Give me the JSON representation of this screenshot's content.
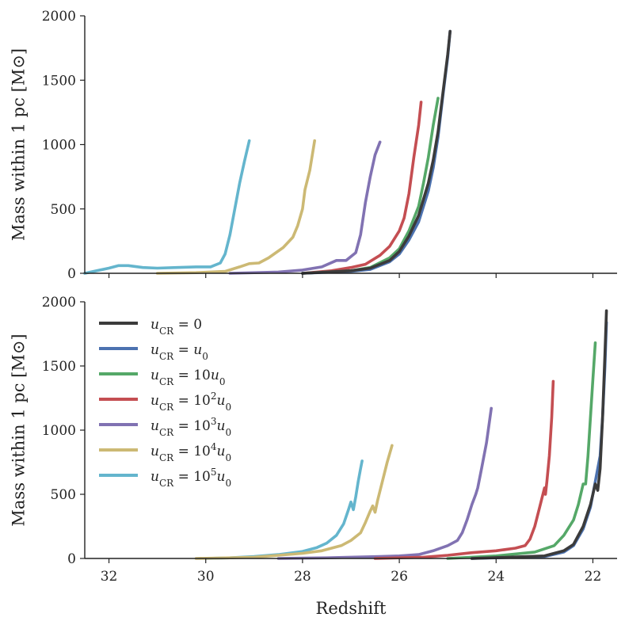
{
  "chart_data": [
    {
      "type": "line",
      "ylabel": "Mass within 1 pc [M⊙]",
      "xlabel": "",
      "xlim": [
        32.5,
        21.5
      ],
      "ylim": [
        0,
        2000
      ],
      "xticks": [
        32,
        30,
        28,
        26,
        24,
        22
      ],
      "xtick_labels": [],
      "yticks": [
        0,
        500,
        1000,
        1500,
        2000
      ],
      "ytick_labels": [
        "0",
        "500",
        "1000",
        "1500",
        "2000"
      ],
      "series": [
        {
          "name": "uCR = 0",
          "color": "#3b3b3b",
          "points": [
            [
              28.0,
              0
            ],
            [
              27.0,
              20
            ],
            [
              26.6,
              40
            ],
            [
              26.2,
              100
            ],
            [
              26.0,
              170
            ],
            [
              25.8,
              290
            ],
            [
              25.6,
              450
            ],
            [
              25.4,
              700
            ],
            [
              25.3,
              880
            ],
            [
              25.2,
              1100
            ],
            [
              25.1,
              1400
            ],
            [
              25.0,
              1700
            ],
            [
              24.95,
              1880
            ]
          ]
        },
        {
          "name": "uCR = u0",
          "color": "#4c72b0",
          "points": [
            [
              28.0,
              0
            ],
            [
              27.0,
              15
            ],
            [
              26.6,
              30
            ],
            [
              26.2,
              90
            ],
            [
              26.0,
              150
            ],
            [
              25.8,
              260
            ],
            [
              25.6,
              400
            ],
            [
              25.4,
              640
            ],
            [
              25.3,
              820
            ],
            [
              25.2,
              1060
            ],
            [
              25.1,
              1380
            ],
            [
              25.0,
              1680
            ],
            [
              24.95,
              1880
            ]
          ]
        },
        {
          "name": "uCR = 10u0",
          "color": "#55a868",
          "points": [
            [
              28.0,
              0
            ],
            [
              27.0,
              20
            ],
            [
              26.6,
              45
            ],
            [
              26.2,
              120
            ],
            [
              26.0,
              190
            ],
            [
              25.8,
              330
            ],
            [
              25.6,
              520
            ],
            [
              25.5,
              700
            ],
            [
              25.4,
              900
            ],
            [
              25.3,
              1150
            ],
            [
              25.2,
              1360
            ]
          ]
        },
        {
          "name": "uCR = 10^2u0",
          "color": "#c44e52",
          "points": [
            [
              28.0,
              0
            ],
            [
              27.4,
              20
            ],
            [
              27.0,
              45
            ],
            [
              26.7,
              70
            ],
            [
              26.4,
              140
            ],
            [
              26.2,
              210
            ],
            [
              26.0,
              330
            ],
            [
              25.9,
              430
            ],
            [
              25.8,
              620
            ],
            [
              25.7,
              900
            ],
            [
              25.6,
              1150
            ],
            [
              25.55,
              1330
            ]
          ]
        },
        {
          "name": "uCR = 10^3u0",
          "color": "#8172b2",
          "points": [
            [
              29.5,
              0
            ],
            [
              28.5,
              10
            ],
            [
              28.0,
              25
            ],
            [
              27.6,
              50
            ],
            [
              27.3,
              100
            ],
            [
              27.1,
              100
            ],
            [
              26.9,
              160
            ],
            [
              26.8,
              300
            ],
            [
              26.7,
              550
            ],
            [
              26.6,
              750
            ],
            [
              26.5,
              920
            ],
            [
              26.4,
              1020
            ]
          ]
        },
        {
          "name": "uCR = 10^4u0",
          "color": "#ccb974",
          "points": [
            [
              31.0,
              0
            ],
            [
              30.2,
              5
            ],
            [
              29.6,
              15
            ],
            [
              29.3,
              50
            ],
            [
              29.1,
              75
            ],
            [
              28.9,
              80
            ],
            [
              28.7,
              120
            ],
            [
              28.4,
              200
            ],
            [
              28.2,
              280
            ],
            [
              28.1,
              370
            ],
            [
              28.0,
              500
            ],
            [
              27.95,
              650
            ],
            [
              27.85,
              800
            ],
            [
              27.75,
              1030
            ]
          ]
        },
        {
          "name": "uCR = 10^5u0",
          "color": "#64b5cd",
          "points": [
            [
              32.5,
              0
            ],
            [
              32.0,
              40
            ],
            [
              31.8,
              60
            ],
            [
              31.6,
              60
            ],
            [
              31.3,
              45
            ],
            [
              31.0,
              40
            ],
            [
              30.6,
              45
            ],
            [
              30.2,
              50
            ],
            [
              29.9,
              50
            ],
            [
              29.7,
              80
            ],
            [
              29.6,
              150
            ],
            [
              29.5,
              300
            ],
            [
              29.4,
              500
            ],
            [
              29.3,
              700
            ],
            [
              29.2,
              870
            ],
            [
              29.1,
              1030
            ]
          ]
        }
      ]
    },
    {
      "type": "line",
      "ylabel": "Mass within 1 pc [M⊙]",
      "xlabel": "Redshift",
      "xlim": [
        32.5,
        21.5
      ],
      "ylim": [
        0,
        2000
      ],
      "xticks": [
        32,
        30,
        28,
        26,
        24,
        22
      ],
      "xtick_labels": [
        "32",
        "30",
        "28",
        "26",
        "24",
        "22"
      ],
      "yticks": [
        0,
        500,
        1000,
        1500,
        2000
      ],
      "ytick_labels": [
        "0",
        "500",
        "1000",
        "1500",
        "2000"
      ],
      "legend": {
        "placement": "upper-left",
        "entries": [
          {
            "label": "uCR = 0",
            "color": "#3b3b3b"
          },
          {
            "label": "uCR = u0",
            "color": "#4c72b0"
          },
          {
            "label": "uCR = 10u0",
            "color": "#55a868"
          },
          {
            "label": "uCR = 10^2u0",
            "color": "#c44e52"
          },
          {
            "label": "uCR = 10^3u0",
            "color": "#8172b2"
          },
          {
            "label": "uCR = 10^4u0",
            "color": "#ccb974"
          },
          {
            "label": "uCR = 10^5u0",
            "color": "#64b5cd"
          }
        ]
      },
      "series": [
        {
          "name": "uCR = 0",
          "color": "#3b3b3b",
          "points": [
            [
              24.5,
              0
            ],
            [
              23.0,
              20
            ],
            [
              22.6,
              60
            ],
            [
              22.4,
              110
            ],
            [
              22.2,
              250
            ],
            [
              22.05,
              420
            ],
            [
              21.95,
              580
            ],
            [
              21.9,
              530
            ],
            [
              21.85,
              700
            ],
            [
              21.8,
              1100
            ],
            [
              21.75,
              1600
            ],
            [
              21.72,
              1930
            ]
          ]
        },
        {
          "name": "uCR = u0",
          "color": "#4c72b0",
          "points": [
            [
              24.5,
              0
            ],
            [
              23.0,
              15
            ],
            [
              22.6,
              50
            ],
            [
              22.4,
              100
            ],
            [
              22.2,
              230
            ],
            [
              22.05,
              400
            ],
            [
              21.95,
              600
            ],
            [
              21.85,
              800
            ],
            [
              21.8,
              1100
            ],
            [
              21.75,
              1500
            ],
            [
              21.72,
              1840
            ]
          ]
        },
        {
          "name": "uCR = 10u0",
          "color": "#55a868",
          "points": [
            [
              25.0,
              0
            ],
            [
              24.0,
              20
            ],
            [
              23.2,
              50
            ],
            [
              22.8,
              100
            ],
            [
              22.6,
              180
            ],
            [
              22.4,
              300
            ],
            [
              22.3,
              420
            ],
            [
              22.2,
              580
            ],
            [
              22.15,
              580
            ],
            [
              22.1,
              800
            ],
            [
              22.05,
              1100
            ],
            [
              22.0,
              1400
            ],
            [
              21.95,
              1680
            ]
          ]
        },
        {
          "name": "uCR = 10^2u0",
          "color": "#c44e52",
          "points": [
            [
              26.5,
              0
            ],
            [
              25.5,
              10
            ],
            [
              25.0,
              25
            ],
            [
              24.5,
              45
            ],
            [
              24.0,
              60
            ],
            [
              23.6,
              80
            ],
            [
              23.4,
              100
            ],
            [
              23.3,
              150
            ],
            [
              23.2,
              250
            ],
            [
              23.1,
              400
            ],
            [
              23.0,
              550
            ],
            [
              22.98,
              500
            ],
            [
              22.95,
              600
            ],
            [
              22.9,
              800
            ],
            [
              22.85,
              1100
            ],
            [
              22.82,
              1380
            ]
          ]
        },
        {
          "name": "uCR = 10^3u0",
          "color": "#8172b2",
          "points": [
            [
              28.5,
              0
            ],
            [
              27.5,
              5
            ],
            [
              27.0,
              10
            ],
            [
              26.4,
              15
            ],
            [
              26.0,
              20
            ],
            [
              25.6,
              30
            ],
            [
              25.3,
              60
            ],
            [
              25.0,
              100
            ],
            [
              24.8,
              140
            ],
            [
              24.7,
              200
            ],
            [
              24.6,
              300
            ],
            [
              24.5,
              420
            ],
            [
              24.42,
              500
            ],
            [
              24.38,
              550
            ],
            [
              24.3,
              700
            ],
            [
              24.2,
              900
            ],
            [
              24.1,
              1170
            ]
          ]
        },
        {
          "name": "uCR = 10^4u0",
          "color": "#ccb974",
          "points": [
            [
              30.2,
              0
            ],
            [
              29.5,
              5
            ],
            [
              29.0,
              10
            ],
            [
              28.5,
              25
            ],
            [
              28.0,
              40
            ],
            [
              27.6,
              60
            ],
            [
              27.2,
              100
            ],
            [
              27.0,
              140
            ],
            [
              26.8,
              200
            ],
            [
              26.7,
              280
            ],
            [
              26.6,
              370
            ],
            [
              26.55,
              410
            ],
            [
              26.5,
              360
            ],
            [
              26.45,
              450
            ],
            [
              26.35,
              600
            ],
            [
              26.25,
              750
            ],
            [
              26.15,
              880
            ]
          ]
        },
        {
          "name": "uCR = 10^5u0",
          "color": "#64b5cd",
          "points": [
            [
              30.0,
              0
            ],
            [
              29.5,
              5
            ],
            [
              29.0,
              15
            ],
            [
              28.5,
              30
            ],
            [
              28.0,
              55
            ],
            [
              27.7,
              85
            ],
            [
              27.5,
              120
            ],
            [
              27.3,
              180
            ],
            [
              27.15,
              270
            ],
            [
              27.05,
              380
            ],
            [
              27.0,
              440
            ],
            [
              26.95,
              380
            ],
            [
              26.9,
              480
            ],
            [
              26.85,
              600
            ],
            [
              26.8,
              700
            ],
            [
              26.77,
              760
            ]
          ]
        }
      ]
    }
  ]
}
